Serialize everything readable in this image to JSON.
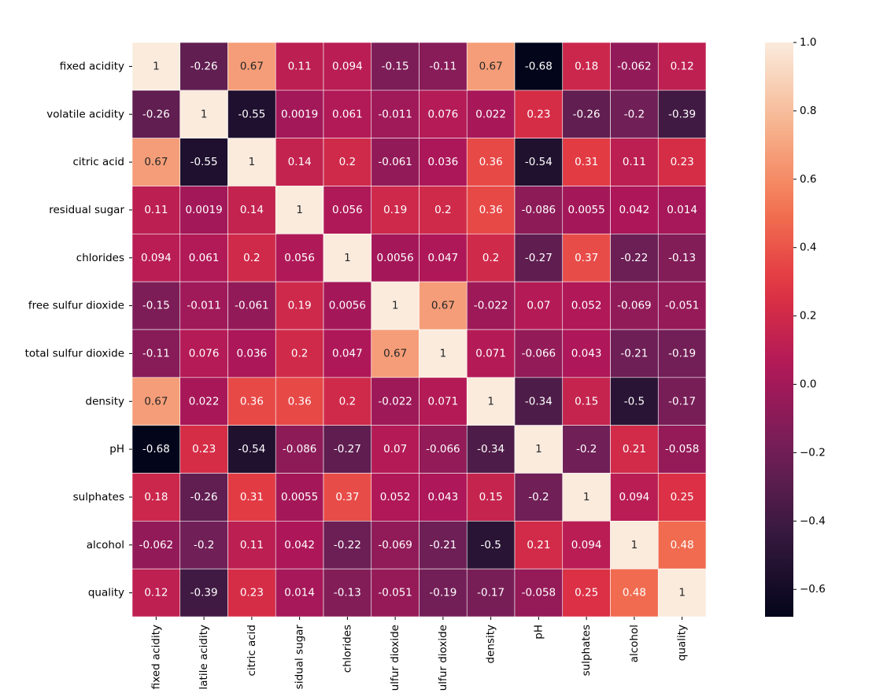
{
  "chart_data": {
    "type": "heatmap",
    "title": "",
    "xlabel": "",
    "ylabel": "",
    "x_tick_labels": [
      "fixed acidity",
      "latile acidity",
      "citric acid",
      "sidual sugar",
      "chlorides",
      "ulfur dioxide",
      "ulfur dioxide",
      "density",
      "pH",
      "sulphates",
      "alcohol",
      "quality"
    ],
    "y_tick_labels": [
      "fixed acidity",
      "volatile acidity",
      "citric acid",
      "residual sugar",
      "chlorides",
      "free sulfur dioxide",
      "total sulfur dioxide",
      "density",
      "pH",
      "sulphates",
      "alcohol",
      "quality"
    ],
    "values": [
      [
        1,
        -0.26,
        0.67,
        0.11,
        0.094,
        -0.15,
        -0.11,
        0.67,
        -0.68,
        0.18,
        -0.062,
        0.12
      ],
      [
        -0.26,
        1,
        -0.55,
        0.0019,
        0.061,
        -0.011,
        0.076,
        0.022,
        0.23,
        -0.26,
        -0.2,
        -0.39
      ],
      [
        0.67,
        -0.55,
        1,
        0.14,
        0.2,
        -0.061,
        0.036,
        0.36,
        -0.54,
        0.31,
        0.11,
        0.23
      ],
      [
        0.11,
        0.0019,
        0.14,
        1,
        0.056,
        0.19,
        0.2,
        0.36,
        -0.086,
        0.0055,
        0.042,
        0.014
      ],
      [
        0.094,
        0.061,
        0.2,
        0.056,
        1,
        0.0056,
        0.047,
        0.2,
        -0.27,
        0.37,
        -0.22,
        -0.13
      ],
      [
        -0.15,
        -0.011,
        -0.061,
        0.19,
        0.0056,
        1,
        0.67,
        -0.022,
        0.07,
        0.052,
        -0.069,
        -0.051
      ],
      [
        -0.11,
        0.076,
        0.036,
        0.2,
        0.047,
        0.67,
        1,
        0.071,
        -0.066,
        0.043,
        -0.21,
        -0.19
      ],
      [
        0.67,
        0.022,
        0.36,
        0.36,
        0.2,
        -0.022,
        0.071,
        1,
        -0.34,
        0.15,
        -0.5,
        -0.17
      ],
      [
        -0.68,
        0.23,
        -0.54,
        -0.086,
        -0.27,
        0.07,
        -0.066,
        -0.34,
        1,
        -0.2,
        0.21,
        -0.058
      ],
      [
        0.18,
        -0.26,
        0.31,
        0.0055,
        0.37,
        0.052,
        0.043,
        0.15,
        -0.2,
        1,
        0.094,
        0.25
      ],
      [
        -0.062,
        -0.2,
        0.11,
        0.042,
        -0.22,
        -0.069,
        -0.21,
        -0.5,
        0.21,
        0.094,
        1,
        0.48
      ],
      [
        0.12,
        -0.39,
        0.23,
        0.014,
        -0.13,
        -0.051,
        -0.19,
        -0.17,
        -0.058,
        0.25,
        0.48,
        1
      ]
    ],
    "annotations": [
      [
        "1",
        "-0.26",
        "0.67",
        "0.11",
        "0.094",
        "-0.15",
        "-0.11",
        "0.67",
        "-0.68",
        "0.18",
        "-0.062",
        "0.12"
      ],
      [
        "-0.26",
        "1",
        "-0.55",
        "0.0019",
        "0.061",
        "-0.011",
        "0.076",
        "0.022",
        "0.23",
        "-0.26",
        "-0.2",
        "-0.39"
      ],
      [
        "0.67",
        "-0.55",
        "1",
        "0.14",
        "0.2",
        "-0.061",
        "0.036",
        "0.36",
        "-0.54",
        "0.31",
        "0.11",
        "0.23"
      ],
      [
        "0.11",
        "0.0019",
        "0.14",
        "1",
        "0.056",
        "0.19",
        "0.2",
        "0.36",
        "-0.086",
        "0.0055",
        "0.042",
        "0.014"
      ],
      [
        "0.094",
        "0.061",
        "0.2",
        "0.056",
        "1",
        "0.0056",
        "0.047",
        "0.2",
        "-0.27",
        "0.37",
        "-0.22",
        "-0.13"
      ],
      [
        "-0.15",
        "-0.011",
        "-0.061",
        "0.19",
        "0.0056",
        "1",
        "0.67",
        "-0.022",
        "0.07",
        "0.052",
        "-0.069",
        "-0.051"
      ],
      [
        "-0.11",
        "0.076",
        "0.036",
        "0.2",
        "0.047",
        "0.67",
        "1",
        "0.071",
        "-0.066",
        "0.043",
        "-0.21",
        "-0.19"
      ],
      [
        "0.67",
        "0.022",
        "0.36",
        "0.36",
        "0.2",
        "-0.022",
        "0.071",
        "1",
        "-0.34",
        "0.15",
        "-0.5",
        "-0.17"
      ],
      [
        "-0.68",
        "0.23",
        "-0.54",
        "-0.086",
        "-0.27",
        "0.07",
        "-0.066",
        "-0.34",
        "1",
        "-0.2",
        "0.21",
        "-0.058"
      ],
      [
        "0.18",
        "-0.26",
        "0.31",
        "0.0055",
        "0.37",
        "0.052",
        "0.043",
        "0.15",
        "-0.2",
        "1",
        "0.094",
        "0.25"
      ],
      [
        "-0.062",
        "-0.2",
        "0.11",
        "0.042",
        "-0.22",
        "-0.069",
        "-0.21",
        "-0.5",
        "0.21",
        "0.094",
        "1",
        "0.48"
      ],
      [
        "0.12",
        "-0.39",
        "0.23",
        "0.014",
        "-0.13",
        "-0.051",
        "-0.19",
        "-0.17",
        "-0.058",
        "0.25",
        "0.48",
        "1"
      ]
    ],
    "vmin": -0.68,
    "vmax": 1.0,
    "colormap": "rocket",
    "colorbar": {
      "ticks": [
        1.0,
        0.8,
        0.6,
        0.4,
        0.2,
        0.0,
        -0.2,
        -0.4,
        -0.6
      ],
      "tick_labels": [
        "1.0",
        "0.8",
        "0.6",
        "0.4",
        "0.2",
        "0.0",
        "−0.2",
        "−0.4",
        "−0.6"
      ]
    },
    "colormap_stops": [
      "#03051a",
      "#35193e",
      "#701f57",
      "#ad1759",
      "#e13342",
      "#f37651",
      "#f6b48f",
      "#faebdd"
    ],
    "cell_border_color": "#ffffff",
    "annotation_text_light": "#ffffff",
    "annotation_text_dark": "#262626",
    "grid": false,
    "legend": "colorbar-right"
  }
}
